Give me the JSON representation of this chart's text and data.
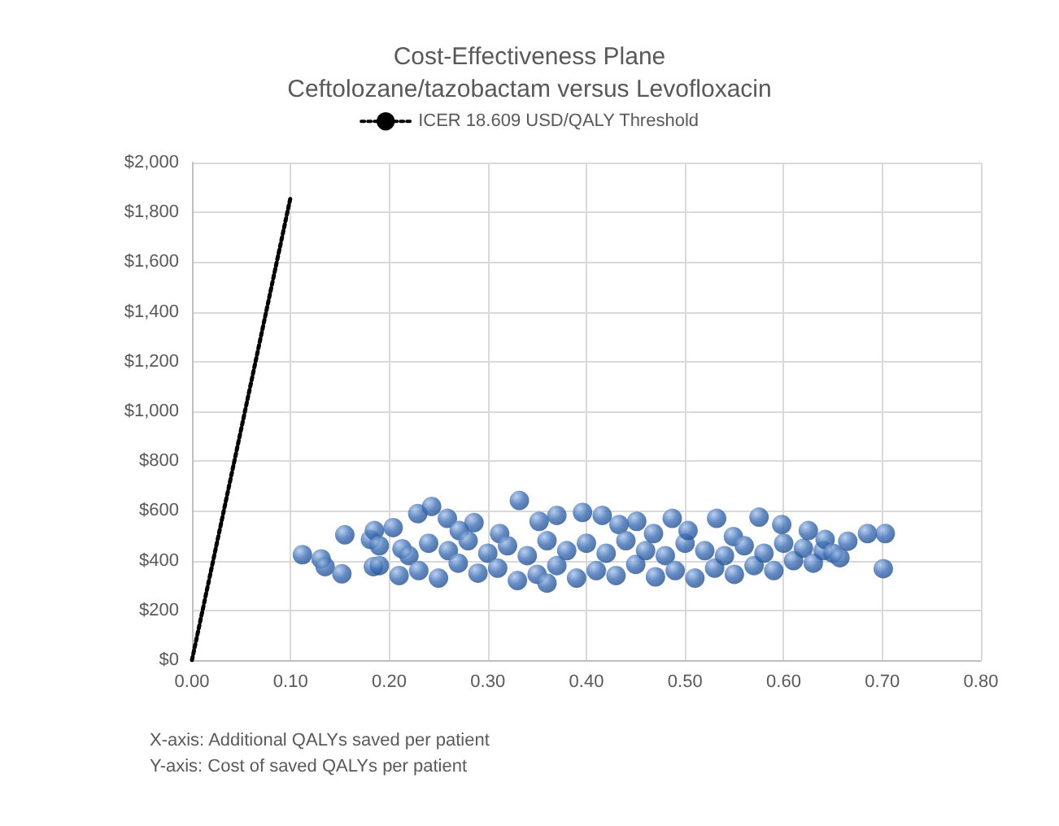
{
  "chart_data": {
    "type": "scatter",
    "title": "Cost-Effectiveness Plane\nCeftolozane/tazobactam versus Levofloxacin",
    "xlim": [
      0,
      0.8
    ],
    "ylim": [
      0,
      2000
    ],
    "xticks": [
      {
        "value": 0,
        "label": "0.00"
      },
      {
        "value": 0.1,
        "label": "0.10"
      },
      {
        "value": 0.2,
        "label": "0.20"
      },
      {
        "value": 0.3,
        "label": "0.30"
      },
      {
        "value": 0.4,
        "label": "0.40"
      },
      {
        "value": 0.5,
        "label": "0.50"
      },
      {
        "value": 0.6,
        "label": "0.60"
      },
      {
        "value": 0.7,
        "label": "0.70"
      },
      {
        "value": 0.8,
        "label": "0.80"
      }
    ],
    "yticks": [
      {
        "value": 0,
        "label": "$0"
      },
      {
        "value": 200,
        "label": "$200"
      },
      {
        "value": 400,
        "label": "$400"
      },
      {
        "value": 600,
        "label": "$600"
      },
      {
        "value": 800,
        "label": "$800"
      },
      {
        "value": 1000,
        "label": "$1,000"
      },
      {
        "value": 1200,
        "label": "$1,200"
      },
      {
        "value": 1400,
        "label": "$1,400"
      },
      {
        "value": 1600,
        "label": "$1,600"
      },
      {
        "value": 1800,
        "label": "$1,800"
      },
      {
        "value": 2000,
        "label": "$2,000"
      }
    ],
    "grid": true,
    "legend": "top",
    "annotations": [
      "X-axis: Additional QALYs saved per patient",
      "Y-axis: Cost of saved QALYs per patient"
    ],
    "series": [
      {
        "type": "line",
        "name": "ICER 18.609 USD/QALY Threshold",
        "color": "#000000",
        "line_style": "dotted",
        "marker": "none",
        "x": [
          0,
          0.1
        ],
        "values": [
          0,
          1861
        ]
      },
      {
        "color": "#3d6fb6",
        "marker": "circle",
        "x": [
          0.112,
          0.131,
          0.135,
          0.152,
          0.155,
          0.181,
          0.184,
          0.185,
          0.19,
          0.19,
          0.204,
          0.21,
          0.213,
          0.22,
          0.229,
          0.23,
          0.24,
          0.243,
          0.25,
          0.259,
          0.26,
          0.27,
          0.271,
          0.28,
          0.286,
          0.29,
          0.3,
          0.31,
          0.312,
          0.32,
          0.33,
          0.332,
          0.34,
          0.35,
          0.352,
          0.36,
          0.36,
          0.37,
          0.37,
          0.38,
          0.39,
          0.396,
          0.4,
          0.41,
          0.416,
          0.42,
          0.43,
          0.433,
          0.44,
          0.45,
          0.451,
          0.46,
          0.468,
          0.47,
          0.48,
          0.487,
          0.49,
          0.5,
          0.503,
          0.51,
          0.52,
          0.53,
          0.532,
          0.54,
          0.549,
          0.55,
          0.56,
          0.57,
          0.575,
          0.58,
          0.59,
          0.598,
          0.6,
          0.61,
          0.62,
          0.625,
          0.63,
          0.64,
          0.642,
          0.65,
          0.657,
          0.665,
          0.685,
          0.701,
          0.703
        ],
        "values": [
          424,
          407,
          376,
          347,
          504,
          485,
          376,
          521,
          380,
          460,
          533,
          340,
          448,
          420,
          589,
          360,
          470,
          618,
          330,
          570,
          440,
          390,
          521,
          480,
          553,
          350,
          430,
          370,
          509,
          460,
          320,
          642,
          420,
          345,
          558,
          480,
          310,
          380,
          582,
          440,
          330,
          594,
          470,
          360,
          582,
          430,
          340,
          545,
          480,
          385,
          558,
          440,
          509,
          335,
          420,
          570,
          360,
          470,
          521,
          330,
          440,
          370,
          570,
          420,
          497,
          345,
          460,
          380,
          575,
          430,
          360,
          545,
          470,
          400,
          450,
          521,
          390,
          440,
          485,
          430,
          412,
          478,
          509,
          368,
          509
        ]
      }
    ]
  }
}
